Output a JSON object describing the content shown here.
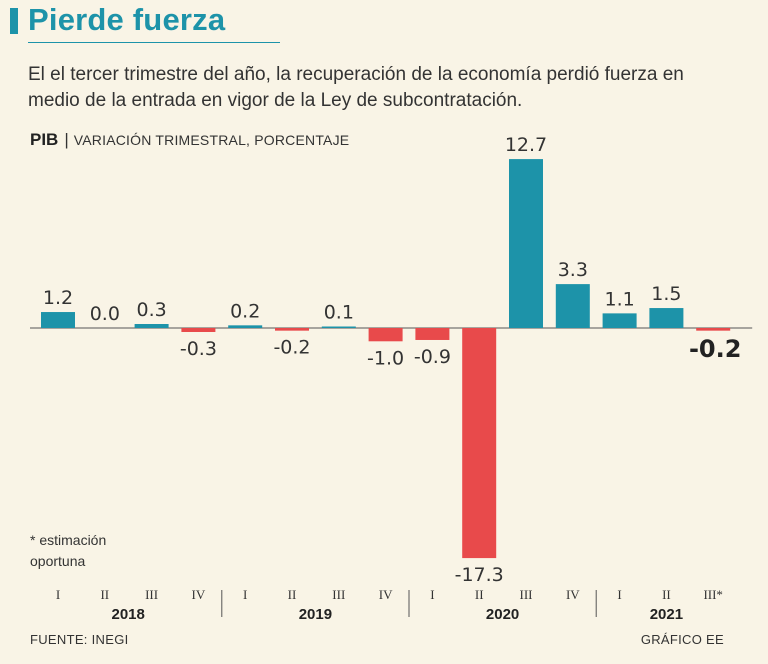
{
  "header": {
    "title": "Pierde fuerza",
    "subtitle": "El el tercer trimestre del año, la recuperación de la economía perdió fuerza en medio de la entrada en vigor de la Ley de subcontratación."
  },
  "chart_label": {
    "bold": "PIB",
    "separator": "|",
    "description": "VARIACIÓN TRIMESTRAL, PORCENTAJE"
  },
  "note": {
    "line1": "* estimación",
    "line2": "oportuna"
  },
  "footer": {
    "source": "FUENTE: INEGI",
    "credit": "GRÁFICO EE"
  },
  "colors": {
    "positive": "#1d93a9",
    "negative": "#e84a4b",
    "title": "#1d93a9",
    "background": "#f9f4e6"
  },
  "chart_data": {
    "type": "bar",
    "title": "PIB",
    "ylabel": "VARIACIÓN TRIMESTRAL, PORCENTAJE",
    "categories": [
      "I",
      "II",
      "III",
      "IV",
      "I",
      "II",
      "III",
      "IV",
      "I",
      "II",
      "III",
      "IV",
      "I",
      "II",
      "III*"
    ],
    "value_labels": [
      "1.2",
      "0.0",
      "0.3",
      "-0.3",
      "0.2",
      "-0.2",
      "0.1",
      "-1.0",
      "-0.9",
      "-17.3",
      "12.7",
      "3.3",
      "1.1",
      "1.5",
      "-0.2"
    ],
    "values": [
      1.2,
      0.0,
      0.3,
      -0.3,
      0.2,
      -0.2,
      0.1,
      -1.0,
      -0.9,
      -17.3,
      12.7,
      3.3,
      1.1,
      1.5,
      -0.2
    ],
    "years": [
      "2018",
      "2019",
      "2020",
      "2021"
    ],
    "quarters_per_year": 4,
    "ylim": [
      -17.3,
      12.7
    ],
    "highlight_last": true
  }
}
